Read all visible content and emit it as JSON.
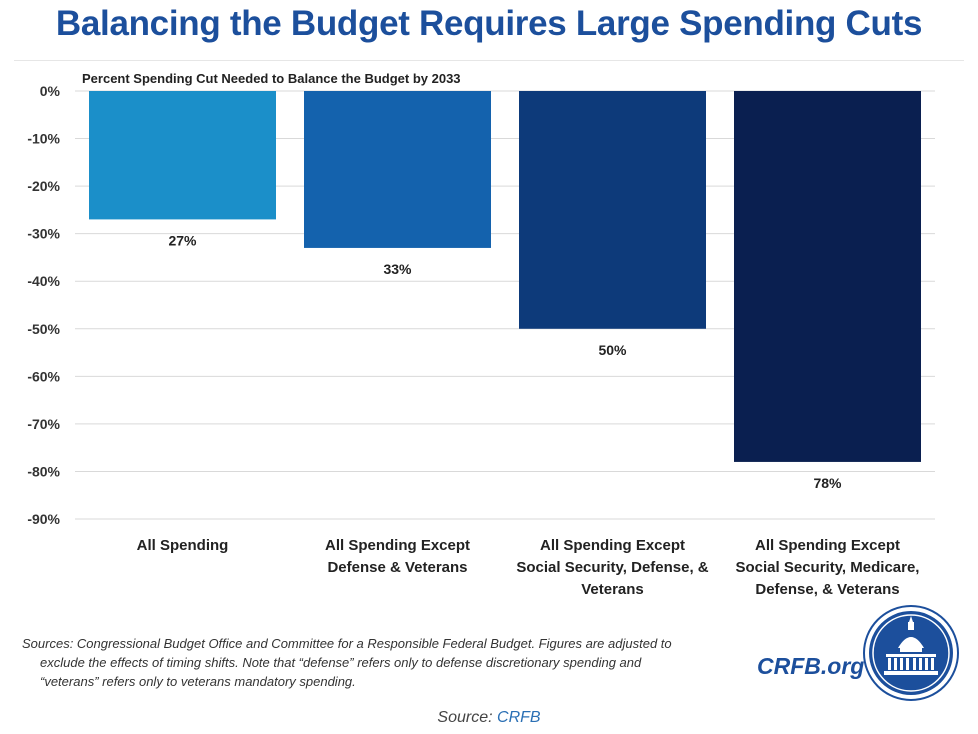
{
  "title": "Balancing the Budget Requires Large Spending Cuts",
  "chart_data": {
    "type": "bar",
    "title": "Percent Spending Cut Needed to Balance the Budget by 2033",
    "categories": [
      "All Spending",
      "All Spending Except Defense & Veterans",
      "All Spending Except Social Security, Defense, & Veterans",
      "All Spending Except Social Security, Medicare, Defense, & Veterans"
    ],
    "category_lines": [
      [
        "All Spending"
      ],
      [
        "All Spending Except",
        "Defense & Veterans"
      ],
      [
        "All Spending Except",
        "Social Security, Defense, &",
        "Veterans"
      ],
      [
        "All Spending Except",
        "Social Security, Medicare,",
        "Defense, & Veterans"
      ]
    ],
    "values": [
      -27,
      -33,
      -50,
      -78
    ],
    "data_labels": [
      "27%",
      "33%",
      "50%",
      "78%"
    ],
    "colors": [
      "#1b8fc9",
      "#1462ad",
      "#0d3a7a",
      "#0a1f50"
    ],
    "ylim": [
      -90,
      0
    ],
    "yticks": [
      0,
      -10,
      -20,
      -30,
      -40,
      -50,
      -60,
      -70,
      -80,
      -90
    ],
    "ytick_labels": [
      "0%",
      "-10%",
      "-20%",
      "-30%",
      "-40%",
      "-50%",
      "-60%",
      "-70%",
      "-80%",
      "-90%"
    ],
    "grid": true,
    "xlabel": "",
    "ylabel": ""
  },
  "sources_lines": [
    "Sources: Congressional Budget Office and Committee for a Responsible Federal Budget. Figures are adjusted to",
    "exclude the effects of timing shifts. Note that “defense” refers only to defense discretionary spending and",
    "“veterans” refers only to veterans mandatory spending."
  ],
  "brand": "CRFB.org",
  "source_prefix": "Source: ",
  "source_link": "CRFB"
}
